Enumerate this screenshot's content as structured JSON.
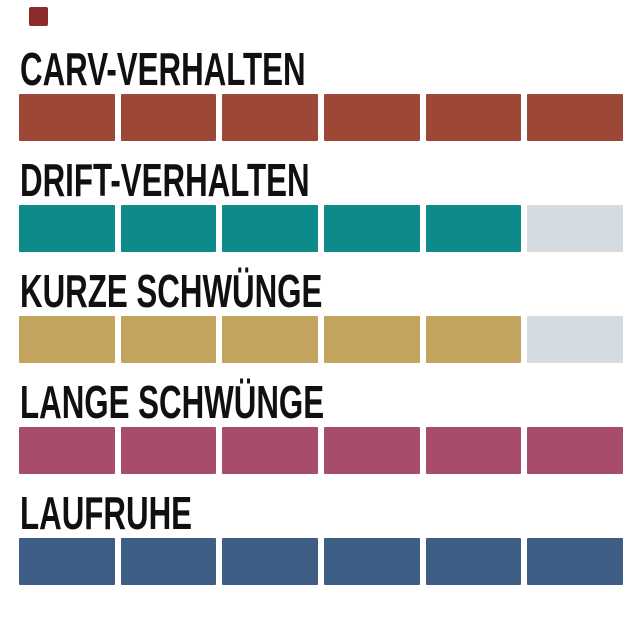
{
  "marker": {
    "color": "#8C2B2B"
  },
  "chart_data": {
    "type": "bar",
    "subtype": "rating-blocks",
    "max_blocks": 6,
    "categories": [
      "CARV-VERHALTEN",
      "DRIFT-VERHALTEN",
      "KURZE SCHWÜNGE",
      "LANGE SCHWÜNGE",
      "LAUFRUHE"
    ],
    "values": [
      6,
      5,
      5,
      6,
      6
    ],
    "colors": [
      "#9D4737",
      "#0F8A8B",
      "#C3A45E",
      "#A84C6E",
      "#3F5E86"
    ],
    "empty_color": "#D4DCE2",
    "text_color": "#101010",
    "background": "#FFFFFF",
    "grid": false,
    "legend": "none"
  }
}
